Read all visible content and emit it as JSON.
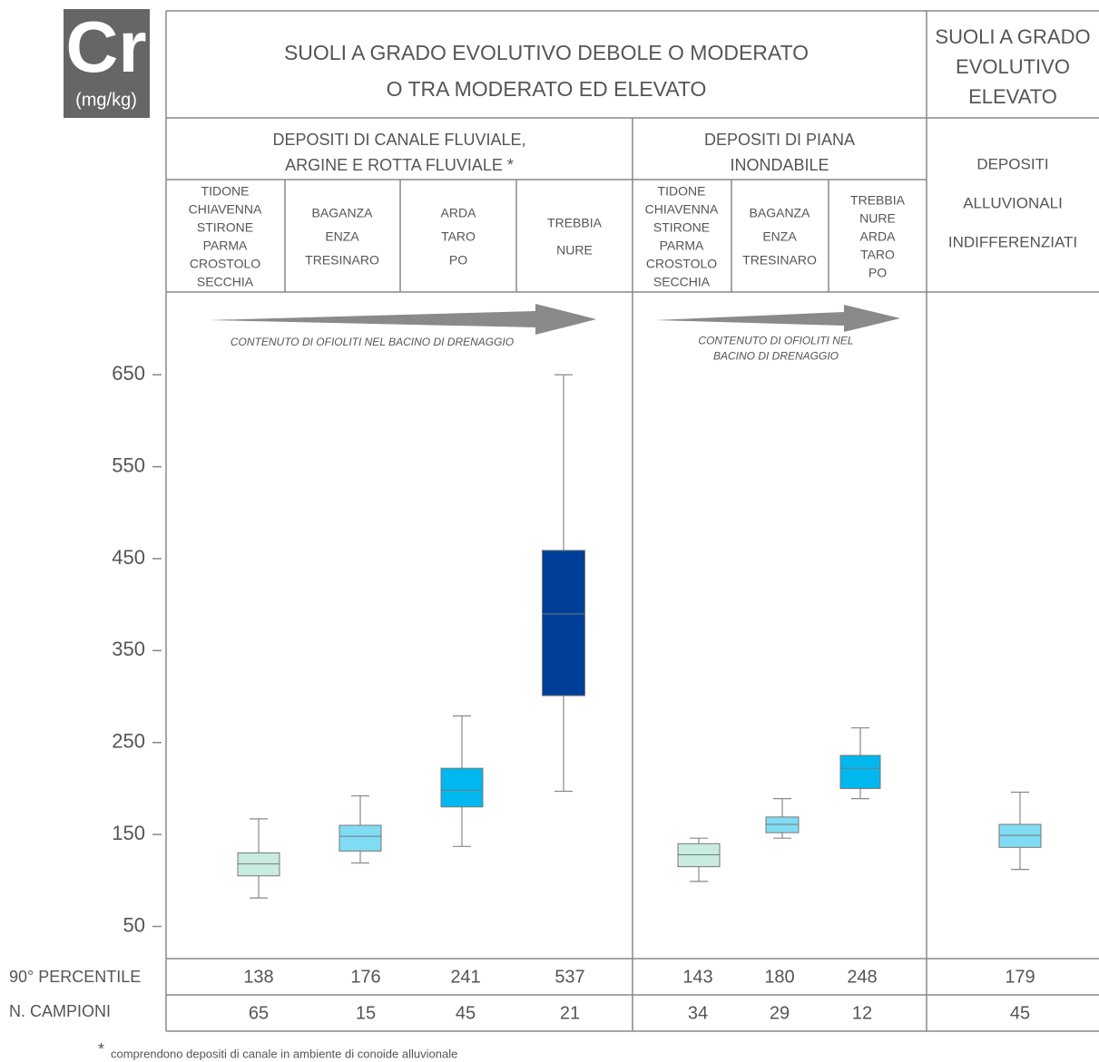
{
  "chart_data": {
    "type": "box",
    "title": "Cr",
    "unit": "(mg/kg)",
    "ylim": [
      15,
      740
    ],
    "yticks": [
      50,
      150,
      250,
      350,
      450,
      550,
      650
    ],
    "header": {
      "main": [
        {
          "lines": [
            "SUOLI A  GRADO EVOLUTIVO DEBOLE O MODERATO",
            "O TRA MODERATO ED ELEVATO"
          ]
        },
        {
          "lines": [
            "SUOLI A GRADO",
            "EVOLUTIVO",
            "ELEVATO"
          ]
        }
      ],
      "groups": [
        {
          "lines": [
            "DEPOSITI DI CANALE FLUVIALE,",
            "ARGINE E ROTTA FLUVIALE *"
          ]
        },
        {
          "lines": [
            "DEPOSITI DI PIANA",
            "INONDABILE"
          ]
        },
        {
          "lines": [
            "DEPOSITI",
            "ALLUVIONALI",
            "INDIFFERENZIATI"
          ]
        }
      ],
      "arrows": [
        {
          "lines": [
            "CONTENUTO DI OFIOLITI NEL BACINO DI DRENAGGIO"
          ]
        },
        {
          "lines": [
            "CONTENUTO DI OFIOLITI NEL",
            "BACINO DI DRENAGGIO"
          ]
        }
      ]
    },
    "categories": [
      [
        "TIDONE",
        "CHIAVENNA",
        "STIRONE",
        "PARMA",
        "CROSTOLO",
        "SECCHIA"
      ],
      [
        "BAGANZA",
        "ENZA",
        "TRESINARO"
      ],
      [
        "ARDA",
        "TARO",
        "PO"
      ],
      [
        "TREBBIA",
        "NURE"
      ],
      [
        "TIDONE",
        "CHIAVENNA",
        "STIRONE",
        "PARMA",
        "CROSTOLO",
        "SECCHIA"
      ],
      [
        "BAGANZA",
        "ENZA",
        "TRESINARO"
      ],
      [
        "TREBBIA",
        "NURE",
        "ARDA",
        "TARO",
        "PO"
      ],
      null
    ],
    "boxes": [
      {
        "color": "#c8ece0",
        "whislo": 81,
        "q1": 105,
        "med": 118,
        "q3": 130,
        "whishi": 167
      },
      {
        "color": "#80dcf2",
        "whislo": 119,
        "q1": 132,
        "med": 148,
        "q3": 160,
        "whishi": 192
      },
      {
        "color": "#00b8ee",
        "whislo": 137,
        "q1": 180,
        "med": 198,
        "q3": 222,
        "whishi": 279
      },
      {
        "color": "#003f99",
        "whislo": 197,
        "q1": 301,
        "med": 390,
        "q3": 459,
        "whishi": 650
      },
      {
        "color": "#c8ece0",
        "whislo": 99,
        "q1": 115,
        "med": 128,
        "q3": 140,
        "whishi": 146
      },
      {
        "color": "#80dcf2",
        "whislo": 146,
        "q1": 152,
        "med": 161,
        "q3": 169,
        "whishi": 189
      },
      {
        "color": "#00b8ee",
        "whislo": 189,
        "q1": 200,
        "med": 222,
        "q3": 236,
        "whishi": 266
      },
      {
        "color": "#80dcf2",
        "whislo": 112,
        "q1": 136,
        "med": 149,
        "q3": 161,
        "whishi": 196
      }
    ],
    "row_labels": [
      "90° PERCENTILE",
      "N. CAMPIONI"
    ],
    "percentile_90": [
      138,
      176,
      241,
      537,
      143,
      180,
      248,
      179
    ],
    "n_samples": [
      65,
      15,
      45,
      21,
      34,
      29,
      12,
      45
    ],
    "footnote": {
      "mark": "*",
      "text": "comprendono depositi di canale in ambiente di conoide alluvionale"
    }
  }
}
